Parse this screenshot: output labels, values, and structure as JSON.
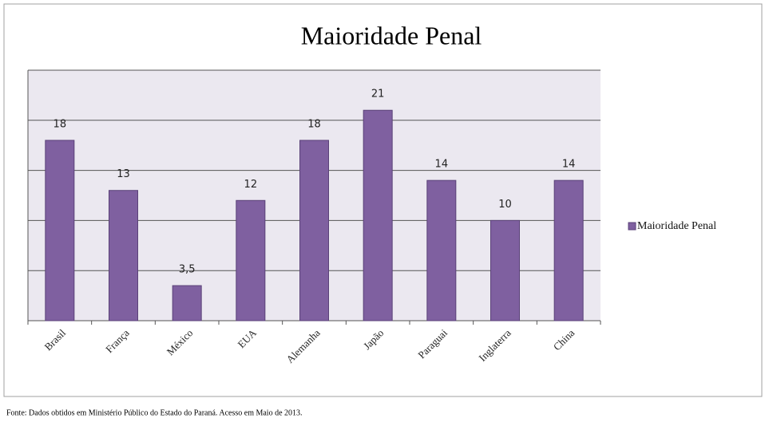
{
  "chart_data": {
    "type": "bar",
    "title": "Maioridade Penal",
    "categories": [
      "Brasil",
      "França",
      "México",
      "EUA",
      "Alemanha",
      "Japão",
      "Paraguai",
      "Inglaterra",
      "China"
    ],
    "series": [
      {
        "name": "Maioridade Penal",
        "color": "#7f60a0",
        "values": [
          18,
          13,
          3.5,
          12,
          18,
          21,
          14,
          10,
          14
        ],
        "value_labels": [
          "18",
          "13",
          "3,5",
          "12",
          "18",
          "21",
          "14",
          "10",
          "14"
        ]
      }
    ],
    "ylim": [
      0,
      25
    ],
    "yticks": [
      0,
      5,
      10,
      15,
      20,
      25
    ],
    "grid": true,
    "legend": "right",
    "source": "Fonte: Dados obtidos em Ministério Público do Estado do Paraná. Acesso em Maio de 2013."
  }
}
